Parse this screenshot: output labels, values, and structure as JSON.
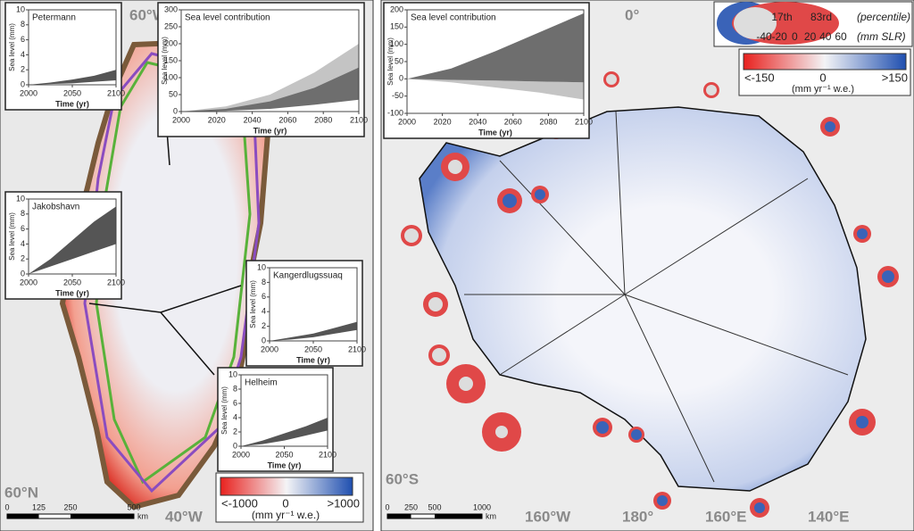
{
  "left_map": {
    "labels": [
      "60°W",
      "60°N",
      "40°W"
    ],
    "colorbar": {
      "min_label": "<-1000",
      "mid_label": "0",
      "max_label": ">1000",
      "units": "(mm yr⁻¹ w.e.)"
    },
    "scale": {
      "ticks": [
        0,
        125,
        250,
        500
      ],
      "unit": "km"
    }
  },
  "right_map": {
    "labels": [
      "0°",
      "60°S",
      "160°W",
      "180°",
      "160°E",
      "140°E"
    ],
    "legend": {
      "low": "17th",
      "high": "83rd",
      "caption": "(percentile)",
      "ticks": [
        -40,
        -20,
        0,
        20,
        40,
        60
      ],
      "units": "(mm SLR)"
    },
    "colorbar": {
      "min_label": "<-150",
      "mid_label": "0",
      "max_label": ">150",
      "units": "(mm yr⁻¹ w.e.)"
    },
    "scale": {
      "ticks": [
        0,
        250,
        500,
        1000
      ],
      "unit": "km"
    }
  },
  "chart_data": [
    {
      "type": "band",
      "title": "Petermann",
      "x_label": "Time (yr)",
      "y_label": "Sea level (mm)",
      "x": [
        2000,
        2025,
        2050,
        2075,
        2100
      ],
      "bands": [
        {
          "color": "#555555",
          "lower": [
            0,
            0.1,
            0.2,
            0.4,
            0.6
          ],
          "upper": [
            0,
            0.3,
            0.7,
            1.2,
            2
          ]
        }
      ],
      "xlim": [
        2000,
        2100
      ],
      "xticks": [
        2000,
        2050,
        2100
      ],
      "ylim": [
        0,
        10
      ],
      "yticks": [
        0,
        2,
        4,
        6,
        8,
        10
      ]
    },
    {
      "type": "band",
      "title": "Sea level contribution",
      "x_label": "Time (yr)",
      "y_label": "Sea level (mm)",
      "x": [
        2000,
        2025,
        2050,
        2075,
        2100
      ],
      "bands": [
        {
          "color": "#c4c4c4",
          "lower": [
            0,
            3,
            10,
            25,
            45
          ],
          "upper": [
            0,
            15,
            50,
            115,
            200
          ]
        },
        {
          "color": "#6e6e6e",
          "lower": [
            0,
            2,
            8,
            20,
            35
          ],
          "upper": [
            0,
            8,
            30,
            70,
            130
          ]
        }
      ],
      "xlim": [
        2000,
        2100
      ],
      "xticks": [
        2000,
        2020,
        2040,
        2060,
        2080,
        2100
      ],
      "ylim": [
        0,
        300
      ],
      "yticks": [
        0,
        50,
        100,
        150,
        200,
        250,
        300
      ]
    },
    {
      "type": "band",
      "title": "Jakobshavn",
      "x_label": "Time (yr)",
      "y_label": "Sea level (mm)",
      "x": [
        2000,
        2025,
        2050,
        2075,
        2100
      ],
      "bands": [
        {
          "color": "#555555",
          "lower": [
            0,
            1,
            2,
            3,
            4
          ],
          "upper": [
            0,
            2,
            4.5,
            7,
            9
          ]
        }
      ],
      "xlim": [
        2000,
        2100
      ],
      "xticks": [
        2000,
        2050,
        2100
      ],
      "ylim": [
        0,
        10
      ],
      "yticks": [
        0,
        2,
        4,
        6,
        8,
        10
      ]
    },
    {
      "type": "band",
      "title": "Kangerdlugssuaq",
      "x_label": "Time (yr)",
      "y_label": "Sea level (mm)",
      "x": [
        2000,
        2025,
        2050,
        2075,
        2100
      ],
      "bands": [
        {
          "color": "#555555",
          "lower": [
            0,
            0.2,
            0.5,
            1,
            1.5
          ],
          "upper": [
            0,
            0.5,
            1,
            1.8,
            2.6
          ]
        }
      ],
      "xlim": [
        2000,
        2100
      ],
      "xticks": [
        2000,
        2050,
        2100
      ],
      "ylim": [
        0,
        10
      ],
      "yticks": [
        0,
        2,
        4,
        6,
        8,
        10
      ]
    },
    {
      "type": "band",
      "title": "Helheim",
      "x_label": "Time (yr)",
      "y_label": "Sea level (mm)",
      "x": [
        2000,
        2025,
        2050,
        2075,
        2100
      ],
      "bands": [
        {
          "color": "#555555",
          "lower": [
            0,
            0.3,
            0.8,
            1.5,
            2.2
          ],
          "upper": [
            0,
            0.8,
            1.8,
            2.8,
            4
          ]
        }
      ],
      "xlim": [
        2000,
        2100
      ],
      "xticks": [
        2000,
        2050,
        2100
      ],
      "ylim": [
        0,
        10
      ],
      "yticks": [
        0,
        2,
        4,
        6,
        8,
        10
      ]
    },
    {
      "type": "band",
      "title": "Sea level contribution",
      "x_label": "Time (yr)",
      "y_label": "Sea level (mm)",
      "x": [
        2000,
        2025,
        2050,
        2075,
        2100
      ],
      "bands": [
        {
          "color": "#c4c4c4",
          "lower": [
            0,
            -10,
            -25,
            -40,
            -60
          ],
          "upper": [
            0,
            -2,
            -5,
            -8,
            -10
          ]
        },
        {
          "color": "#6e6e6e",
          "lower": [
            0,
            -3,
            -5,
            -8,
            -10
          ],
          "upper": [
            0,
            30,
            80,
            135,
            190
          ]
        }
      ],
      "xlim": [
        2000,
        2100
      ],
      "xticks": [
        2000,
        2020,
        2040,
        2060,
        2080,
        2100
      ],
      "ylim": [
        -100,
        200
      ],
      "yticks": [
        -100,
        -50,
        0,
        50,
        100,
        150,
        200
      ]
    }
  ]
}
